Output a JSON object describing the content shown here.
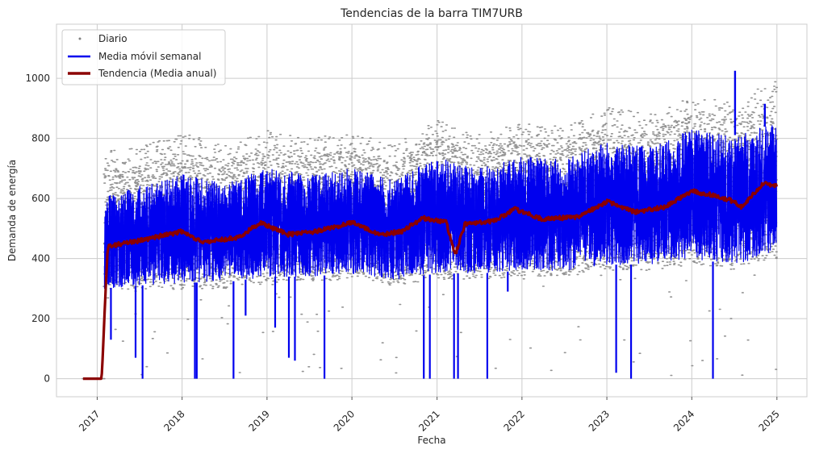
{
  "chart_data": {
    "type": "line",
    "title": "Tendencias de la barra TIM7URB",
    "xlabel": "Fecha",
    "ylabel": "Demanda de energía",
    "x_ticks": [
      "2017",
      "2018",
      "2019",
      "2020",
      "2021",
      "2022",
      "2023",
      "2024",
      "2025"
    ],
    "xlim": [
      "2016-07-10",
      "2025-05-10"
    ],
    "y_ticks": [
      0,
      200,
      400,
      600,
      800,
      1000
    ],
    "ylim": [
      -60,
      1180
    ],
    "grid": true,
    "legend_position": "top-left",
    "colors": {
      "daily": "#808080",
      "weekly": "#0000ee",
      "annual": "#8b0000",
      "grid": "#cccccc",
      "axes": "#cccccc"
    },
    "series": [
      {
        "name": "Diario",
        "style": "scatter",
        "summary": [
          {
            "x": "2016-11-01",
            "low": 0,
            "high": 0
          },
          {
            "x": "2017-02-01",
            "low": 300,
            "high": 700
          },
          {
            "x": "2017-07-01",
            "low": 290,
            "high": 710
          },
          {
            "x": "2018-01-01",
            "low": 300,
            "high": 760
          },
          {
            "x": "2018-07-01",
            "low": 300,
            "high": 720
          },
          {
            "x": "2019-01-01",
            "low": 320,
            "high": 770
          },
          {
            "x": "2019-07-01",
            "low": 320,
            "high": 740
          },
          {
            "x": "2020-01-01",
            "low": 330,
            "high": 760
          },
          {
            "x": "2020-07-01",
            "low": 310,
            "high": 720
          },
          {
            "x": "2021-01-01",
            "low": 330,
            "high": 800
          },
          {
            "x": "2021-07-01",
            "low": 330,
            "high": 760
          },
          {
            "x": "2022-01-01",
            "low": 340,
            "high": 790
          },
          {
            "x": "2022-07-01",
            "low": 340,
            "high": 780
          },
          {
            "x": "2023-01-01",
            "low": 360,
            "high": 850
          },
          {
            "x": "2023-07-01",
            "low": 360,
            "high": 820
          },
          {
            "x": "2024-01-01",
            "low": 380,
            "high": 880
          },
          {
            "x": "2024-07-01",
            "low": 360,
            "high": 860
          },
          {
            "x": "2024-12-31",
            "low": 400,
            "high": 940
          }
        ]
      },
      {
        "name": "Media móvil semanal",
        "style": "line",
        "summary": [
          {
            "x": "2017-02-01",
            "low": 300,
            "high": 610
          },
          {
            "x": "2017-07-01",
            "low": 310,
            "high": 640
          },
          {
            "x": "2018-01-01",
            "low": 320,
            "high": 680
          },
          {
            "x": "2018-07-01",
            "low": 320,
            "high": 650
          },
          {
            "x": "2019-01-01",
            "low": 340,
            "high": 700
          },
          {
            "x": "2019-07-01",
            "low": 340,
            "high": 680
          },
          {
            "x": "2020-01-01",
            "low": 350,
            "high": 700
          },
          {
            "x": "2020-07-01",
            "low": 330,
            "high": 660
          },
          {
            "x": "2021-01-01",
            "low": 350,
            "high": 740
          },
          {
            "x": "2021-07-01",
            "low": 350,
            "high": 700
          },
          {
            "x": "2022-01-01",
            "low": 360,
            "high": 740
          },
          {
            "x": "2022-07-01",
            "low": 360,
            "high": 730
          },
          {
            "x": "2023-01-01",
            "low": 380,
            "high": 790
          },
          {
            "x": "2023-07-01",
            "low": 380,
            "high": 770
          },
          {
            "x": "2024-01-01",
            "low": 400,
            "high": 830
          },
          {
            "x": "2024-07-01",
            "low": 380,
            "high": 810
          },
          {
            "x": "2024-12-31",
            "low": 420,
            "high": 850
          }
        ],
        "spikes": [
          {
            "x": "2024-07-05",
            "y": 1025
          },
          {
            "x": "2024-11-10",
            "y": 915
          }
        ],
        "drops": [
          {
            "x": "2017-03-01",
            "y": 130
          },
          {
            "x": "2017-06-15",
            "y": 70
          },
          {
            "x": "2017-07-15",
            "y": 0
          },
          {
            "x": "2018-02-25",
            "y": 0
          },
          {
            "x": "2018-03-05",
            "y": 0
          },
          {
            "x": "2018-08-10",
            "y": 0
          },
          {
            "x": "2018-10-01",
            "y": 210
          },
          {
            "x": "2019-02-05",
            "y": 170
          },
          {
            "x": "2019-04-05",
            "y": 70
          },
          {
            "x": "2019-05-01",
            "y": 60
          },
          {
            "x": "2019-09-05",
            "y": 0
          },
          {
            "x": "2020-11-05",
            "y": 0
          },
          {
            "x": "2020-12-01",
            "y": 0
          },
          {
            "x": "2021-03-15",
            "y": 0
          },
          {
            "x": "2021-04-01",
            "y": 0
          },
          {
            "x": "2021-08-05",
            "y": 0
          },
          {
            "x": "2021-11-01",
            "y": 290
          },
          {
            "x": "2023-02-10",
            "y": 20
          },
          {
            "x": "2023-04-15",
            "y": 0
          },
          {
            "x": "2024-04-01",
            "y": 0
          }
        ]
      },
      {
        "name": "Tendencia (Media anual)",
        "style": "line",
        "points": [
          {
            "x": "2016-11-01",
            "y": 0
          },
          {
            "x": "2017-01-20",
            "y": 0
          },
          {
            "x": "2017-02-15",
            "y": 440
          },
          {
            "x": "2017-06-01",
            "y": 455
          },
          {
            "x": "2018-01-01",
            "y": 490
          },
          {
            "x": "2018-04-01",
            "y": 455
          },
          {
            "x": "2018-09-01",
            "y": 470
          },
          {
            "x": "2018-12-01",
            "y": 520
          },
          {
            "x": "2019-04-01",
            "y": 480
          },
          {
            "x": "2019-08-01",
            "y": 490
          },
          {
            "x": "2020-01-01",
            "y": 520
          },
          {
            "x": "2020-05-01",
            "y": 480
          },
          {
            "x": "2020-08-01",
            "y": 490
          },
          {
            "x": "2020-11-01",
            "y": 535
          },
          {
            "x": "2021-02-10",
            "y": 520
          },
          {
            "x": "2021-03-20",
            "y": 410
          },
          {
            "x": "2021-05-01",
            "y": 515
          },
          {
            "x": "2021-09-01",
            "y": 525
          },
          {
            "x": "2021-12-01",
            "y": 565
          },
          {
            "x": "2022-04-01",
            "y": 530
          },
          {
            "x": "2022-09-01",
            "y": 540
          },
          {
            "x": "2023-01-01",
            "y": 590
          },
          {
            "x": "2023-05-01",
            "y": 555
          },
          {
            "x": "2023-09-01",
            "y": 570
          },
          {
            "x": "2024-01-01",
            "y": 625
          },
          {
            "x": "2024-04-01",
            "y": 610
          },
          {
            "x": "2024-07-01",
            "y": 590
          },
          {
            "x": "2024-08-01",
            "y": 570
          },
          {
            "x": "2024-11-01",
            "y": 650
          },
          {
            "x": "2024-12-31",
            "y": 640
          }
        ]
      }
    ]
  }
}
